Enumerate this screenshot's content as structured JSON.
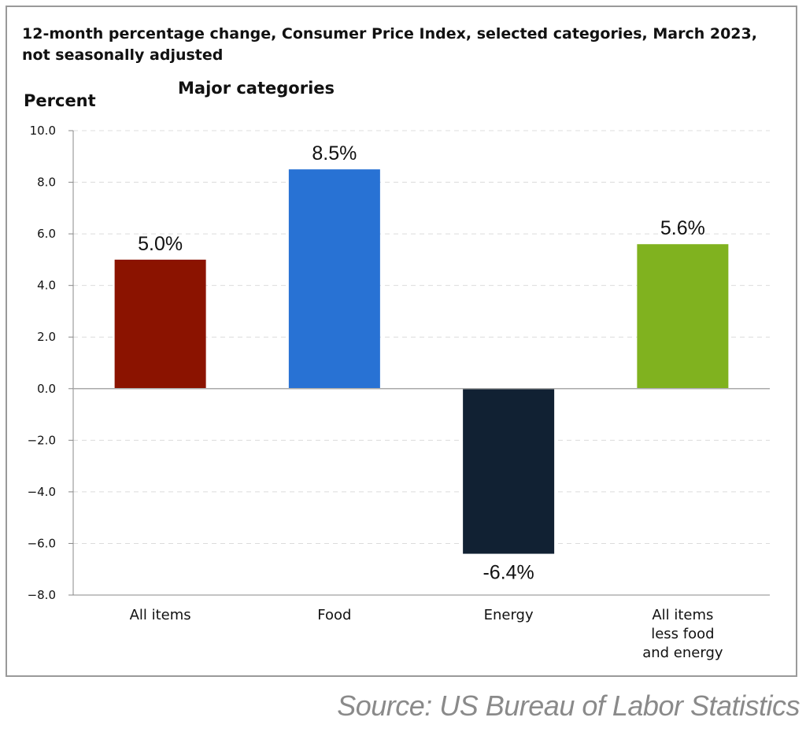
{
  "chart_data": {
    "type": "bar",
    "title": "12-month percentage change, Consumer Price Index, selected categories, March 2023, not seasonally adjusted",
    "subtitle": "Major categories",
    "ylabel": "Percent",
    "xlabel": "",
    "ylim": [
      -8.0,
      10.0
    ],
    "yticks": [
      10.0,
      8.0,
      6.0,
      4.0,
      2.0,
      0.0,
      -2.0,
      -4.0,
      -6.0,
      -8.0
    ],
    "ytick_labels": [
      "10.0",
      "8.0",
      "6.0",
      "4.0",
      "2.0",
      "0.0",
      "−2.0",
      "−4.0",
      "−6.0",
      "−8.0"
    ],
    "grid": "horizontal dashed",
    "categories": [
      [
        "All items"
      ],
      [
        "Food"
      ],
      [
        "Energy"
      ],
      [
        "All items",
        "less food",
        "and energy"
      ]
    ],
    "values": [
      5.0,
      8.5,
      -6.4,
      5.6
    ],
    "data_labels": [
      "5.0%",
      "8.5%",
      "-6.4%",
      "5.6%"
    ],
    "colors": [
      "#8b1300",
      "#2872d4",
      "#112133",
      "#80b21f"
    ]
  },
  "source": "Source: US Bureau of Labor Statistics"
}
